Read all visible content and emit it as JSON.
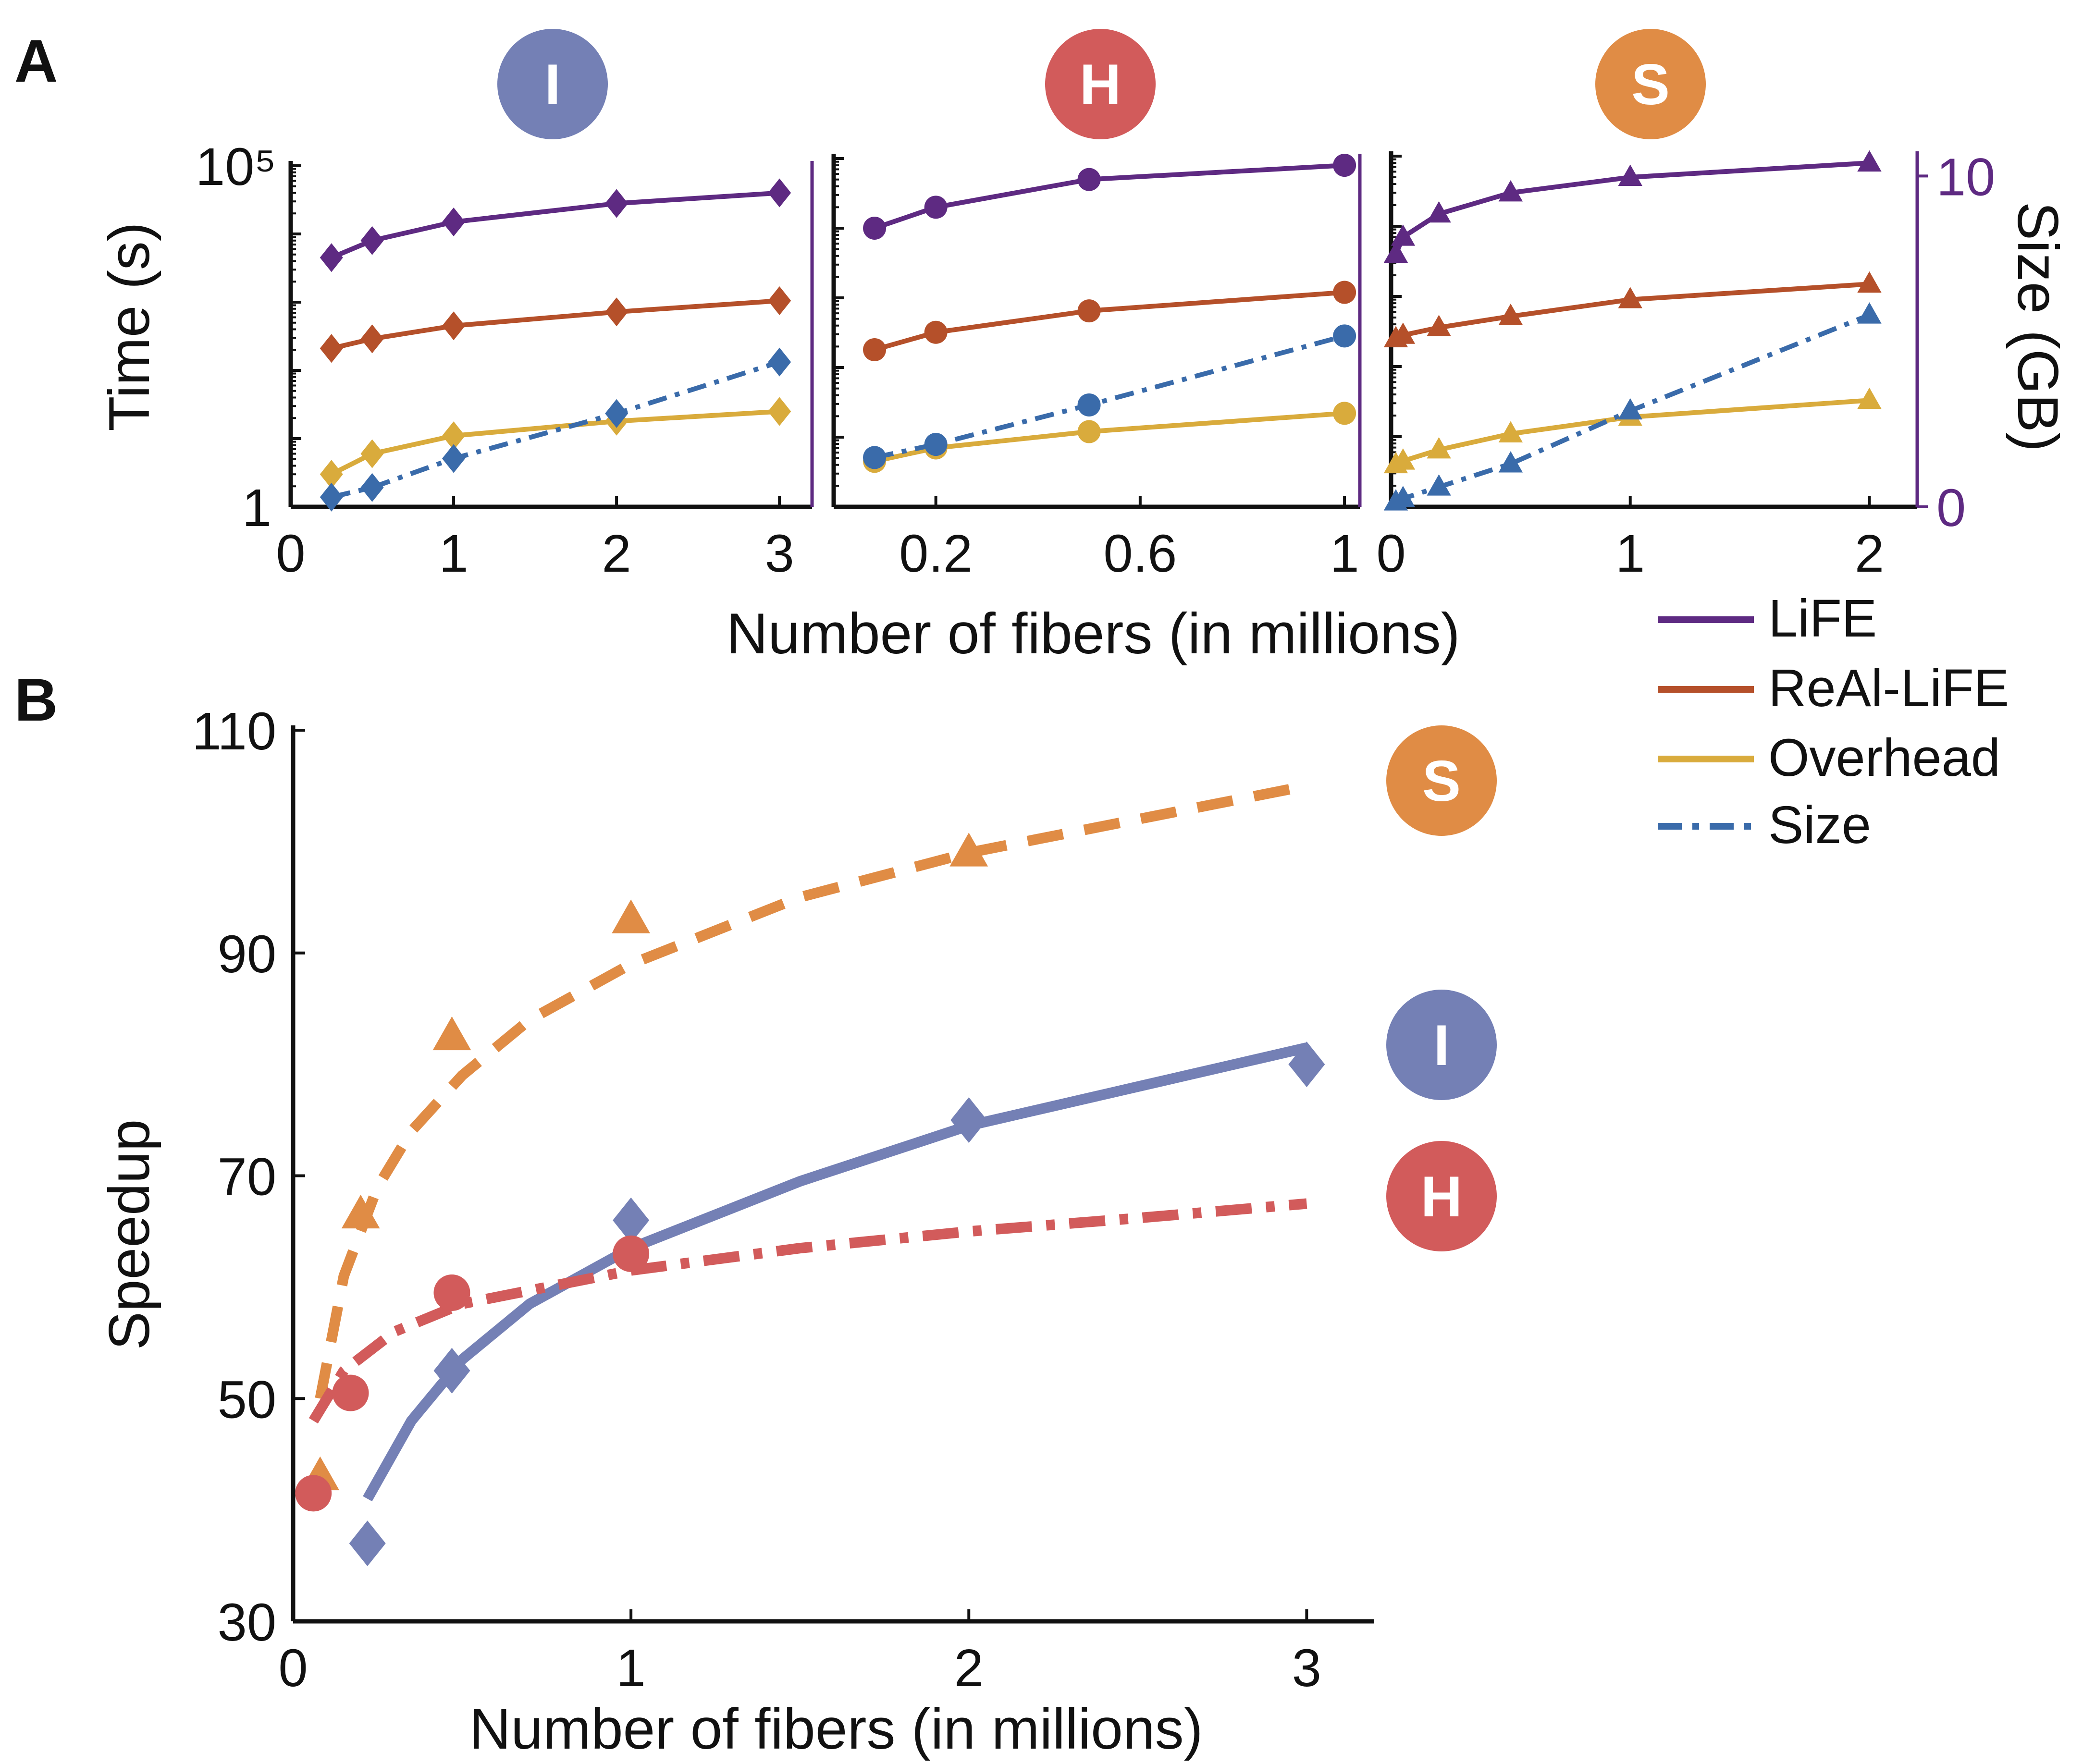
{
  "panels": {
    "a": "A",
    "b": "B"
  },
  "colors": {
    "LiFE": "#5e2a82",
    "ReAl-LiFE": "#b5502a",
    "Overhead": "#d9ab3c",
    "Size": "#3a6baa",
    "I": "#7480b5",
    "H": "#d25b5b",
    "S": "#e08c45"
  },
  "chart_data": [
    {
      "id": "A-I",
      "type": "line",
      "badge": "I",
      "marker": "diamond",
      "x": [
        0.25,
        0.5,
        1,
        2,
        3
      ],
      "xticks": [
        0,
        1,
        2,
        3
      ],
      "xtick_labels": [
        "0",
        "1",
        "2",
        "3"
      ],
      "xlim": [
        0,
        3.2
      ],
      "yscale": "log",
      "ylim": [
        1,
        100000
      ],
      "ytick_labels": [
        "1",
        "10⁵"
      ],
      "ylabel": "Time (s)",
      "series": [
        {
          "name": "LiFE",
          "values": [
            4500,
            8000,
            15000,
            28000,
            40000
          ]
        },
        {
          "name": "ReAl-LiFE",
          "values": [
            210,
            290,
            450,
            720,
            1050
          ]
        },
        {
          "name": "Overhead",
          "values": [
            3,
            6,
            11,
            18,
            25
          ]
        },
        {
          "name": "Size",
          "y2_values": [
            0.3,
            0.6,
            1.5,
            2.9,
            4.5
          ]
        }
      ],
      "y2lim": [
        0,
        10.6
      ]
    },
    {
      "id": "A-H",
      "type": "line",
      "badge": "H",
      "marker": "circle",
      "x": [
        0.08,
        0.2,
        0.5,
        1
      ],
      "xticks": [
        0.2,
        0.6,
        1
      ],
      "xtick_labels": [
        "0.2",
        "0.6",
        "1"
      ],
      "xlim": [
        0,
        1.03
      ],
      "yscale": "log",
      "ylim": [
        1,
        100000
      ],
      "series": [
        {
          "name": "LiFE",
          "values": [
            10000,
            20000,
            50000,
            80000
          ]
        },
        {
          "name": "ReAl-LiFE",
          "values": [
            180,
            320,
            650,
            1200
          ]
        },
        {
          "name": "Overhead",
          "values": [
            4.5,
            7,
            12,
            22
          ]
        },
        {
          "name": "Size",
          "y2_values": [
            1.5,
            1.9,
            3.1,
            5.2
          ]
        }
      ],
      "y2lim": [
        0,
        10.6
      ]
    },
    {
      "id": "A-S",
      "type": "line",
      "badge": "S",
      "marker": "triangle",
      "x": [
        0.02,
        0.05,
        0.2,
        0.5,
        1,
        2
      ],
      "xticks": [
        0,
        1,
        2
      ],
      "xtick_labels": [
        "0",
        "1",
        "2"
      ],
      "xlim": [
        0,
        2.2
      ],
      "yscale": "log",
      "ylim": [
        1,
        100000
      ],
      "y2ticks": [
        0,
        10
      ],
      "y2tick_labels": [
        "0",
        "10"
      ],
      "y2label": "Size (GB)",
      "series": [
        {
          "name": "LiFE",
          "values": [
            4000,
            7000,
            15000,
            30000,
            50000,
            80000
          ]
        },
        {
          "name": "ReAl-LiFE",
          "values": [
            250,
            280,
            360,
            520,
            900,
            1500
          ]
        },
        {
          "name": "Overhead",
          "values": [
            4,
            4.5,
            6.5,
            11,
            19,
            33
          ]
        },
        {
          "name": "Size",
          "y2_values": [
            0.15,
            0.25,
            0.6,
            1.3,
            2.9,
            5.8
          ]
        }
      ],
      "y2lim": [
        0,
        10.6
      ]
    },
    {
      "id": "B",
      "type": "scatter",
      "xlabel": "Number of fibers (in millions)",
      "ylabel": "Speedup",
      "xlim": [
        0,
        3.2
      ],
      "ylim": [
        30,
        110
      ],
      "xticks": [
        0,
        1,
        2,
        3
      ],
      "xtick_labels": [
        "0",
        "1",
        "2",
        "3"
      ],
      "yticks": [
        30,
        50,
        70,
        90,
        110
      ],
      "ytick_labels": [
        "30",
        "50",
        "70",
        "90",
        "110"
      ],
      "series": [
        {
          "name": "S",
          "marker": "triangle",
          "line": "dashed",
          "points": [
            [
              0.08,
              43
            ],
            [
              0.2,
              66.5
            ],
            [
              0.47,
              82.5
            ],
            [
              1,
              93
            ],
            [
              2,
              99
            ]
          ],
          "fit": [
            [
              0.08,
              50
            ],
            [
              0.15,
              61
            ],
            [
              0.25,
              69
            ],
            [
              0.35,
              74
            ],
            [
              0.5,
              79
            ],
            [
              0.7,
              84
            ],
            [
              1,
              89
            ],
            [
              1.5,
              95
            ],
            [
              2,
              99
            ],
            [
              2.5,
              102
            ],
            [
              3,
              105
            ]
          ]
        },
        {
          "name": "I",
          "marker": "diamond",
          "line": "solid",
          "points": [
            [
              0.22,
              37
            ],
            [
              0.47,
              52.5
            ],
            [
              1,
              66
            ],
            [
              2,
              75
            ],
            [
              3,
              80
            ]
          ],
          "fit": [
            [
              0.22,
              41
            ],
            [
              0.35,
              48
            ],
            [
              0.5,
              53.5
            ],
            [
              0.7,
              58.5
            ],
            [
              1,
              63.5
            ],
            [
              1.5,
              69.5
            ],
            [
              2,
              74.5
            ],
            [
              2.5,
              78
            ],
            [
              3,
              81.5
            ]
          ]
        },
        {
          "name": "H",
          "marker": "circle",
          "line": "dashdot",
          "points": [
            [
              0.06,
              41.5
            ],
            [
              0.17,
              50.5
            ],
            [
              0.47,
              59.5
            ],
            [
              1,
              63
            ]
          ],
          "fit": [
            [
              0.06,
              48
            ],
            [
              0.15,
              52.5
            ],
            [
              0.3,
              56
            ],
            [
              0.5,
              58.5
            ],
            [
              0.75,
              60
            ],
            [
              1,
              61.5
            ],
            [
              1.5,
              63.5
            ],
            [
              2,
              65
            ],
            [
              2.5,
              66.2
            ],
            [
              3,
              67.5
            ]
          ]
        }
      ]
    }
  ],
  "shared_xlabel_A": "Number of fibers (in millions)",
  "legend": [
    "LiFE",
    "ReAl-LiFE",
    "Overhead",
    "Size"
  ],
  "badges_B": [
    "S",
    "I",
    "H"
  ]
}
